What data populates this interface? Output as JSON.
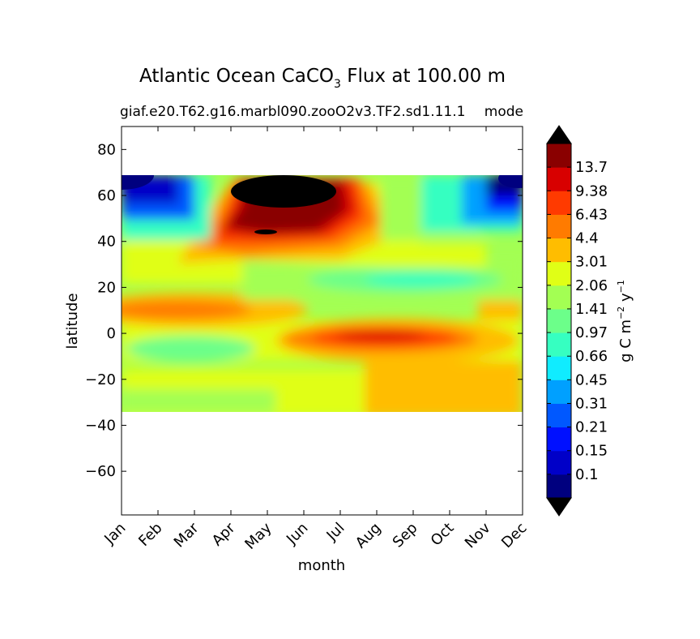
{
  "chart_data": {
    "type": "heatmap",
    "title_main": "Atlantic Ocean CaCO",
    "title_sub": "3",
    "title_rest": " Flux at 100.00 m",
    "subtitle_left": "giaf.e20.T62.g16.marbl090.zooO2v3.TF2.sd1.11.1",
    "subtitle_right": "mode",
    "xlabel": "month",
    "ylabel": "latitude",
    "x_categories": [
      "Jan",
      "Feb",
      "Mar",
      "Apr",
      "May",
      "Jun",
      "Jul",
      "Aug",
      "Sep",
      "Oct",
      "Nov",
      "Dec"
    ],
    "y_ticks": [
      "80",
      "60",
      "40",
      "20",
      "0",
      "−20",
      "−40",
      "−60"
    ],
    "y_tick_values": [
      80,
      60,
      40,
      20,
      0,
      -20,
      -40,
      -60
    ],
    "ylim": [
      -79,
      90
    ],
    "data_lat_range": [
      -34,
      68
    ],
    "colorbar": {
      "label": "g C m$^{-2}$ y$^{-1}$",
      "label_parts": [
        "g C m",
        "−2",
        "y",
        "−1"
      ],
      "extend": "both",
      "tick_labels": [
        "0.1",
        "0.15",
        "0.21",
        "0.31",
        "0.45",
        "0.66",
        "0.97",
        "1.41",
        "2.06",
        "3.01",
        "4.4",
        "6.43",
        "9.38",
        "13.7"
      ],
      "colors": [
        "#00007f",
        "#0000c8",
        "#0010ff",
        "#0058ff",
        "#00a0ff",
        "#10ecff",
        "#36ffc1",
        "#6cff8a",
        "#a3ff53",
        "#e0ff16",
        "#ffbd00",
        "#ff7b00",
        "#ff3a00",
        "#d80000",
        "#8a0000"
      ],
      "under_color": "#000000",
      "over_color": "#000000"
    }
  }
}
